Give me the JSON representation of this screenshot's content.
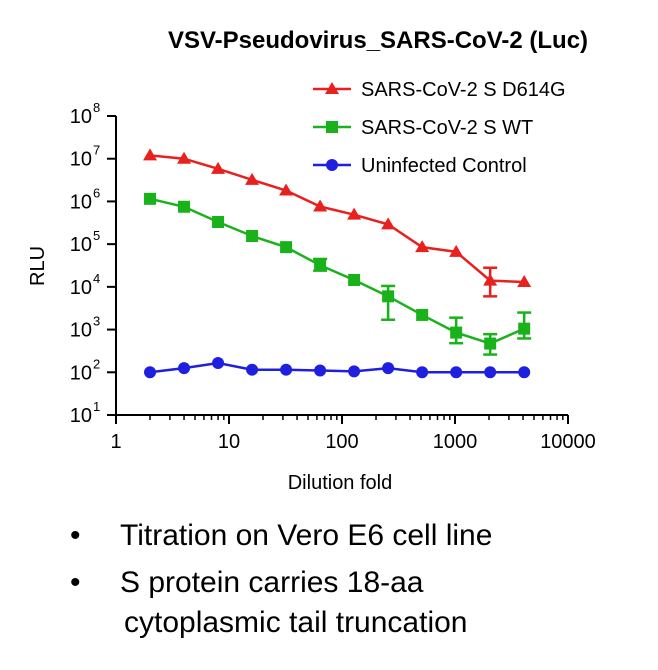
{
  "chart_data": {
    "type": "line",
    "title": "VSV-Pseudovirus_SARS-CoV-2 (Luc)",
    "xlabel": "Dilution fold",
    "ylabel": "RLU",
    "xscale": "log",
    "yscale": "log",
    "xlim": [
      1,
      10000
    ],
    "ylim": [
      10,
      100000000
    ],
    "x_ticks": [
      {
        "value": 1,
        "label": "1"
      },
      {
        "value": 10,
        "label": "10"
      },
      {
        "value": 100,
        "label": "100"
      },
      {
        "value": 1000,
        "label": "1000"
      },
      {
        "value": 10000,
        "label": "10000"
      }
    ],
    "y_ticks": [
      {
        "value": 10,
        "base": "10",
        "exp": "1"
      },
      {
        "value": 100,
        "base": "10",
        "exp": "2"
      },
      {
        "value": 1000,
        "base": "10",
        "exp": "3"
      },
      {
        "value": 10000,
        "base": "10",
        "exp": "4"
      },
      {
        "value": 100000,
        "base": "10",
        "exp": "5"
      },
      {
        "value": 1000000,
        "base": "10",
        "exp": "6"
      },
      {
        "value": 10000000,
        "base": "10",
        "exp": "7"
      },
      {
        "value": 100000000,
        "base": "10",
        "exp": "8"
      }
    ],
    "legend_position": "top-right",
    "series": [
      {
        "name": "SARS-CoV-2 S D614G",
        "color": "#e8201e",
        "marker": "triangle",
        "x": [
          2,
          4,
          8,
          16,
          32,
          64,
          128,
          256,
          512,
          1024,
          2048,
          4096
        ],
        "y": [
          12000000,
          10000000,
          5800000,
          3200000,
          1800000,
          760000,
          490000,
          290000,
          85000,
          66000,
          14000,
          13000
        ],
        "err": [
          0,
          0,
          0,
          0,
          0,
          0,
          0,
          0,
          0,
          0,
          [
            6000,
            28000
          ],
          0
        ]
      },
      {
        "name": "SARS-CoV-2 S WT",
        "color": "#1ab21a",
        "marker": "square",
        "x": [
          2,
          4,
          8,
          16,
          32,
          64,
          128,
          256,
          512,
          1024,
          2048,
          4096
        ],
        "y": [
          1150000,
          750000,
          330000,
          155000,
          85000,
          32000,
          14500,
          6000,
          2200,
          850,
          470,
          1050
        ],
        "err": [
          0,
          0,
          0,
          0,
          0,
          [
            24000,
            45000
          ],
          0,
          [
            1700,
            10500
          ],
          0,
          [
            480,
            1900
          ],
          [
            260,
            780
          ],
          [
            620,
            2500
          ]
        ]
      },
      {
        "name": "Uninfected Control",
        "color": "#1f1fe0",
        "marker": "circle",
        "x": [
          2,
          4,
          8,
          16,
          32,
          64,
          128,
          256,
          512,
          1024,
          2048,
          4096
        ],
        "y": [
          100,
          125,
          165,
          115,
          115,
          110,
          105,
          125,
          100,
          100,
          100,
          100
        ],
        "err": [
          0,
          0,
          0,
          0,
          0,
          0,
          0,
          0,
          0,
          0,
          0,
          0
        ]
      }
    ]
  },
  "bullets": [
    {
      "line1": "Titration on Vero E6 cell line",
      "line2": ""
    },
    {
      "line1": "S protein carries 18-aa",
      "line2": "cytoplasmic tail truncation"
    }
  ],
  "bullet_symbol": "•"
}
